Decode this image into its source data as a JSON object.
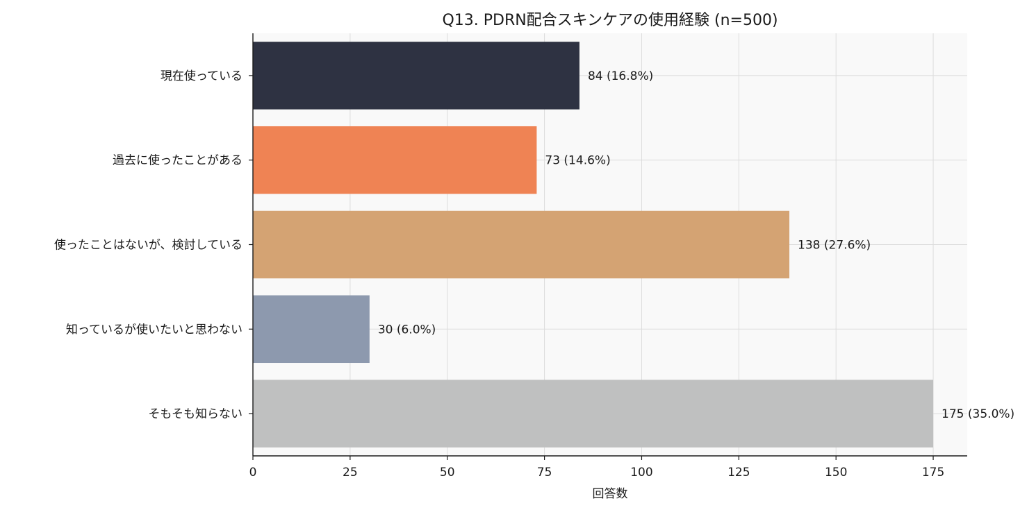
{
  "chart_data": {
    "type": "bar",
    "orientation": "horizontal",
    "title": "Q13. PDRN配合スキンケアの使用経験 (n=500)",
    "xlabel": "回答数",
    "ylabel": "",
    "xlim": [
      0,
      183.75
    ],
    "xticks": [
      0,
      25,
      50,
      75,
      100,
      125,
      150,
      175
    ],
    "grid": true,
    "categories": [
      "現在使っている",
      "過去に使ったことがある",
      "使ったことはないが、検討している",
      "知っているが使いたいと思わない",
      "そもそも知らない"
    ],
    "values": [
      84,
      73,
      138,
      30,
      175
    ],
    "data_labels": [
      "84 (16.8%)",
      "73 (14.6%)",
      "138 (27.6%)",
      "30 (6.0%)",
      "175 (35.0%)"
    ],
    "colors": [
      "#2e3242",
      "#ef8354",
      "#d4a373",
      "#8d99ae",
      "#bfc0c0"
    ],
    "background": "#f9f9f9"
  }
}
